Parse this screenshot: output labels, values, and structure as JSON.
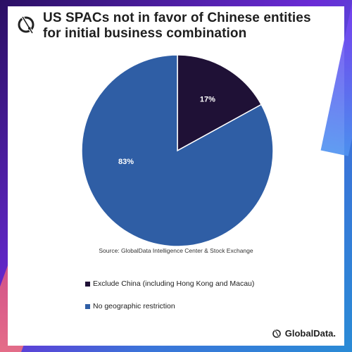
{
  "chart_data": {
    "type": "pie",
    "title": "US SPACs not in favor of Chinese entities for initial business combination",
    "source": "Source: GlobalData Intelligence Center & Stock Exchange",
    "slices": [
      {
        "label": "Exclude China (including Hong Kong and Macau)",
        "value": 17,
        "display": "17%",
        "color": "#1f1136"
      },
      {
        "label": "No geographic restriction",
        "value": 83,
        "display": "83%",
        "color": "#2f5ea5"
      }
    ],
    "legend_position": "bottom-left"
  },
  "brand": {
    "name": "GlobalData."
  },
  "icons": {
    "logo": "globaldata-logo-icon"
  }
}
